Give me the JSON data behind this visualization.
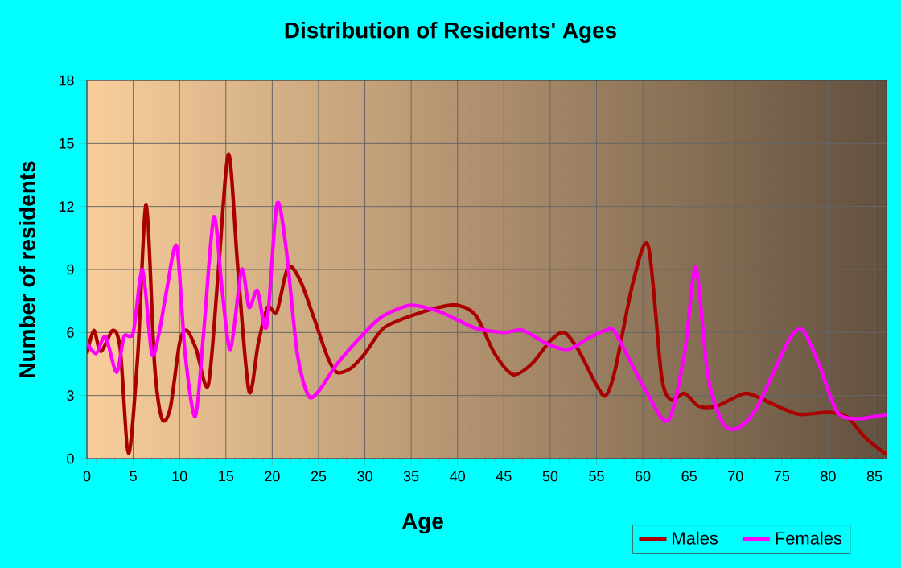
{
  "chart_data": {
    "type": "line",
    "title": "Distribution of Residents' Ages",
    "xlabel": "Age",
    "ylabel": "Number of residents",
    "xlim": [
      0,
      86.3
    ],
    "ylim": [
      0,
      18
    ],
    "xticks": [
      0,
      5,
      10,
      15,
      20,
      25,
      30,
      35,
      40,
      45,
      50,
      55,
      60,
      65,
      70,
      75,
      80,
      85
    ],
    "yticks": [
      0,
      3,
      6,
      9,
      12,
      15,
      18
    ],
    "grid": true,
    "legend": "bottom right",
    "marker": "none",
    "line_style": "solid",
    "series": [
      {
        "name": "Males",
        "color": "#aa0000",
        "x": [
          0,
          0.75,
          1.5,
          2.8,
          3.6,
          4.5,
          5.5,
          6.4,
          7.3,
          8.1,
          9,
          10,
          10.8,
          11.8,
          13.1,
          14.2,
          15.3,
          16.3,
          17.5,
          18.5,
          19.5,
          20.5,
          21.7,
          23,
          24.5,
          26,
          27,
          28.5,
          30,
          32,
          35,
          38,
          40,
          42,
          44,
          46,
          48,
          50,
          51.5,
          53,
          55,
          56,
          57,
          59,
          60.6,
          62,
          63,
          64.5,
          66,
          68,
          71,
          73,
          75,
          77,
          80,
          82,
          84,
          86.3
        ],
        "values": [
          5,
          6.1,
          5.1,
          6.1,
          5.2,
          0.25,
          5,
          12.1,
          4.5,
          1.9,
          2.4,
          5.5,
          6.1,
          5.2,
          3.5,
          9,
          14.5,
          9,
          3.2,
          5.5,
          7.2,
          7,
          9.1,
          8.5,
          6.7,
          4.8,
          4.1,
          4.3,
          5,
          6.2,
          6.8,
          7.2,
          7.3,
          6.8,
          5,
          4,
          4.5,
          5.6,
          6,
          5.2,
          3.5,
          3,
          4.2,
          8.5,
          10.1,
          4,
          2.8,
          3.1,
          2.5,
          2.5,
          3.1,
          2.8,
          2.4,
          2.1,
          2.2,
          2,
          1,
          0.2
        ]
      },
      {
        "name": "Females",
        "color": "#ff00ff",
        "x": [
          0,
          1,
          2,
          3.2,
          4,
          5,
          6,
          7,
          7.8,
          8.6,
          9.7,
          10.6,
          11.7,
          12.6,
          13.7,
          14.6,
          15.5,
          16.7,
          17.5,
          18.4,
          19.4,
          20.5,
          21.5,
          22.7,
          23.9,
          25,
          27,
          30,
          32,
          35,
          38,
          40,
          42,
          45,
          47,
          50,
          52,
          54,
          56,
          57,
          60,
          62.7,
          64.5,
          65.7,
          67,
          68.5,
          70,
          72,
          74,
          76,
          77.3,
          79,
          81,
          83.2,
          85,
          86.3
        ],
        "values": [
          5.5,
          5,
          5.8,
          4.1,
          5.8,
          6,
          9,
          5,
          6,
          8,
          10.1,
          5,
          2,
          6,
          11.5,
          8,
          5.2,
          9,
          7.2,
          8,
          6.3,
          12.1,
          10,
          5,
          3,
          3.2,
          4.5,
          6,
          6.8,
          7.3,
          7,
          6.6,
          6.2,
          6,
          6.1,
          5.4,
          5.2,
          5.7,
          6.1,
          6,
          3.5,
          1.8,
          5,
          9.1,
          4,
          1.8,
          1.4,
          2.2,
          4,
          5.8,
          6.1,
          4.5,
          2.2,
          1.9,
          2,
          2.1
        ]
      }
    ]
  }
}
